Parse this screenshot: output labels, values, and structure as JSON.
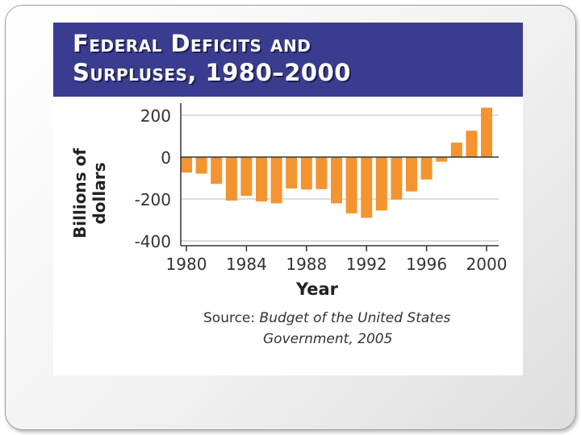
{
  "title_lines": [
    "Federal Deficits and",
    "Surpluses, 1980–2000"
  ],
  "source_label": "Source:",
  "source_line1": "Budget of the United States",
  "source_line2": "Government, 2005",
  "colors": {
    "bar": "#f39431",
    "banner": "#3a3d8f",
    "grid": "#c8c8c8",
    "axis": "#333333"
  },
  "chart_data": {
    "type": "bar",
    "title": "Federal Deficits and Surpluses, 1980–2000",
    "xlabel": "Year",
    "ylabel_lines": [
      "Billions of",
      "dollars"
    ],
    "x": [
      1980,
      1981,
      1982,
      1983,
      1984,
      1985,
      1986,
      1987,
      1988,
      1989,
      1990,
      1991,
      1992,
      1993,
      1994,
      1995,
      1996,
      1997,
      1998,
      1999,
      2000
    ],
    "values": [
      -74,
      -79,
      -128,
      -208,
      -185,
      -212,
      -221,
      -150,
      -155,
      -153,
      -221,
      -269,
      -290,
      -255,
      -203,
      -164,
      -107,
      -22,
      69,
      126,
      236
    ],
    "ylim": [
      -400,
      250
    ],
    "yticks": [
      200,
      0,
      -200,
      -400
    ],
    "ytick_labels": [
      "200",
      "0",
      "-200",
      "-400"
    ],
    "xticks": [
      1980,
      1984,
      1988,
      1992,
      1996,
      2000
    ],
    "xtick_labels": [
      "1980",
      "1984",
      "1988",
      "1992",
      "1996",
      "2000"
    ],
    "grid": true
  }
}
